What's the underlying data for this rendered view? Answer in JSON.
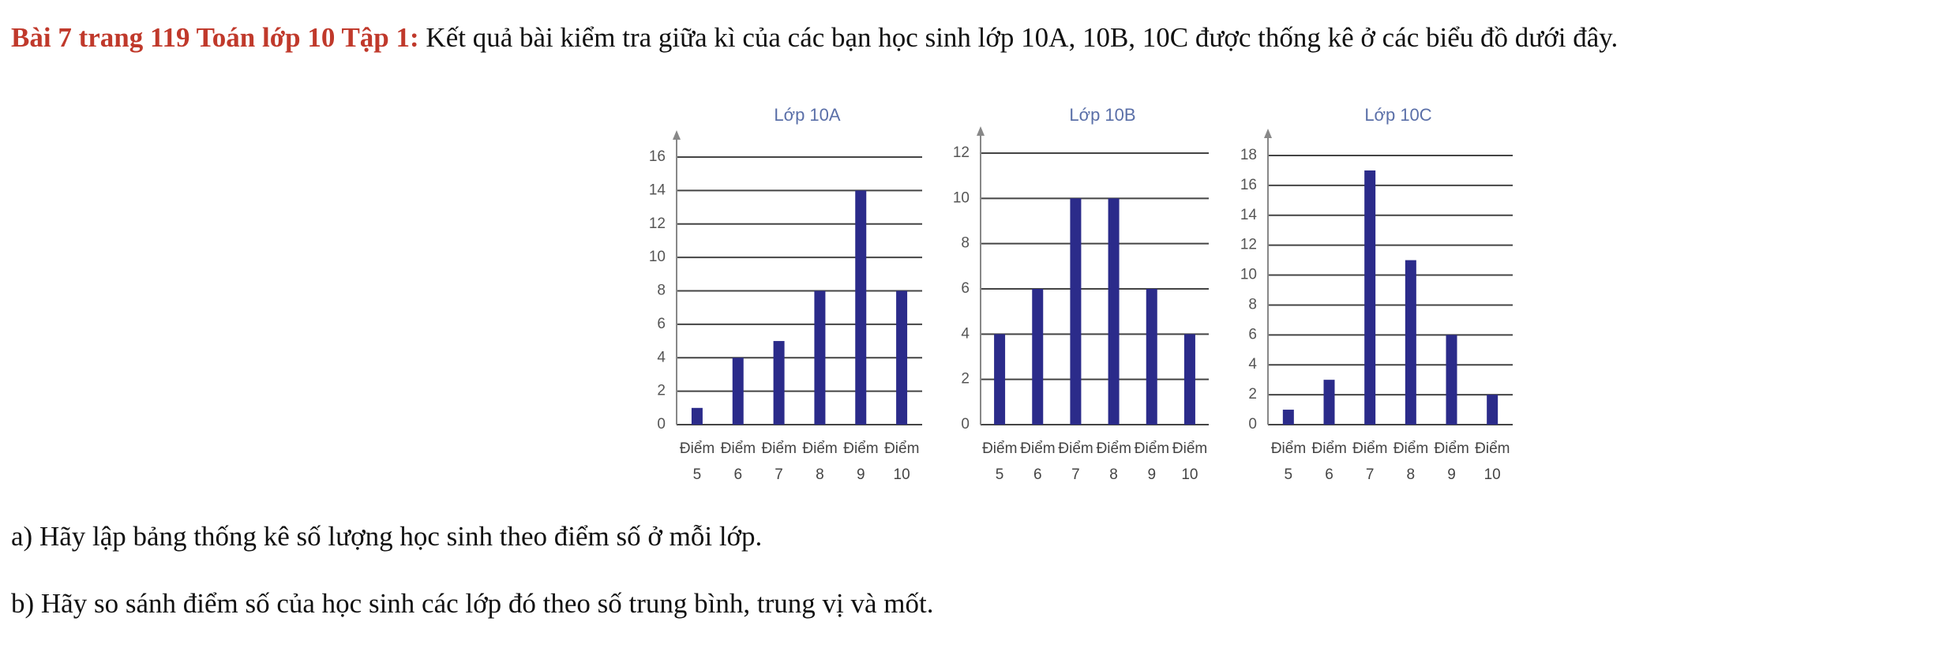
{
  "heading": {
    "label": "Bài 7 trang 119 Toán lớp 10 Tập 1:",
    "text": "Kết quả bài kiểm tra giữa kì của các bạn học sinh lớp 10A, 10B, 10C được thống kê ở các biểu đồ dưới đây."
  },
  "chart_data": [
    {
      "type": "bar",
      "title": "Lớp 10A",
      "categories": [
        "Điểm 5",
        "Điểm 6",
        "Điểm 7",
        "Điểm 8",
        "Điểm 9",
        "Điểm 10"
      ],
      "values": [
        1,
        4,
        5,
        8,
        14,
        8
      ],
      "color": "#2b2b8a",
      "ylim": [
        0,
        16
      ],
      "yticks": [
        0,
        2,
        4,
        6,
        8,
        10,
        12,
        14,
        16
      ],
      "grid": true
    },
    {
      "type": "bar",
      "title": "Lớp 10B",
      "categories": [
        "Điểm 5",
        "Điểm 6",
        "Điểm 7",
        "Điểm 8",
        "Điểm 9",
        "Điểm 10"
      ],
      "values": [
        4,
        6,
        10,
        10,
        6,
        4
      ],
      "color": "#2b2b8a",
      "ylim": [
        0,
        12
      ],
      "yticks": [
        0,
        2,
        4,
        6,
        8,
        10,
        12
      ],
      "grid": true
    },
    {
      "type": "bar",
      "title": "Lớp 10C",
      "categories": [
        "Điểm 5",
        "Điểm 6",
        "Điểm 7",
        "Điểm 8",
        "Điểm 9",
        "Điểm 10"
      ],
      "values": [
        1,
        3,
        17,
        11,
        6,
        2
      ],
      "color": "#2b2b8a",
      "ylim": [
        0,
        18
      ],
      "yticks": [
        0,
        2,
        4,
        6,
        8,
        10,
        12,
        14,
        16,
        18
      ],
      "grid": true
    }
  ],
  "questions": [
    "a) Hãy lập bảng thống kê số lượng học sinh theo điểm số ở mỗi lớp.",
    "b) Hãy so sánh điểm số của học sinh các lớp đó theo số trung bình, trung vị và mốt."
  ]
}
